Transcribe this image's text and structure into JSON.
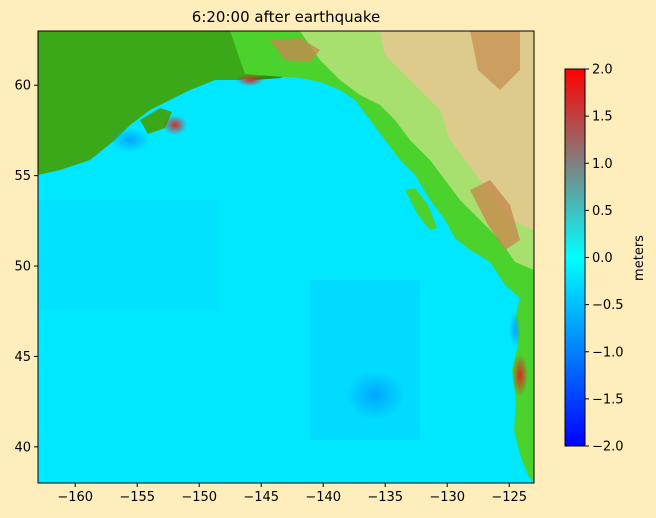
{
  "chart_data": {
    "type": "heatmap",
    "title": "6:20:00 after earthquake",
    "xlabel": "",
    "ylabel": "",
    "x_ticks": [
      -160,
      -155,
      -150,
      -145,
      -140,
      -135,
      -130,
      -125
    ],
    "y_ticks": [
      40,
      45,
      50,
      55,
      60
    ],
    "xlim": [
      -163,
      -123
    ],
    "ylim": [
      38,
      63
    ],
    "colorbar": {
      "label": "meters",
      "range": [
        -2.0,
        2.0
      ],
      "ticks": [
        "2.0",
        "1.5",
        "1.0",
        "0.5",
        "0.0",
        "−0.5",
        "−1.0",
        "−1.5",
        "−2.0"
      ],
      "colors": [
        "#0000ff",
        "#0080ff",
        "#00ffff",
        "#808080",
        "#ff0000"
      ]
    },
    "water_color": "#00e8ff",
    "land_colors": [
      "#2e8b10",
      "#4cd22c",
      "#a8e070",
      "#e0d090",
      "#c89050"
    ],
    "grid": false
  }
}
